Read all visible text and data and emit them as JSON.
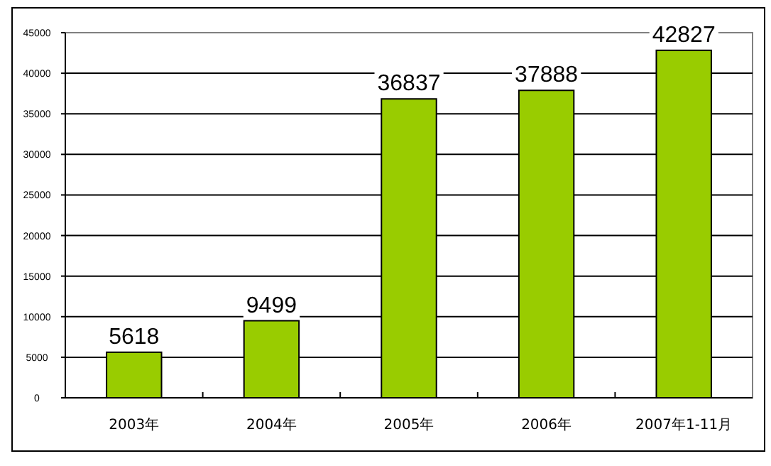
{
  "chart_data": {
    "type": "bar",
    "categories": [
      "2003年",
      "2004年",
      "2005年",
      "2006年",
      "2007年1-11月"
    ],
    "values": [
      5618,
      9499,
      36837,
      37888,
      42827
    ],
    "color": "#99cc00",
    "ylim": [
      0,
      45000
    ],
    "yticks": [
      0,
      5000,
      10000,
      15000,
      20000,
      25000,
      30000,
      35000,
      40000,
      45000
    ],
    "grid": "y",
    "data_labels": true
  }
}
